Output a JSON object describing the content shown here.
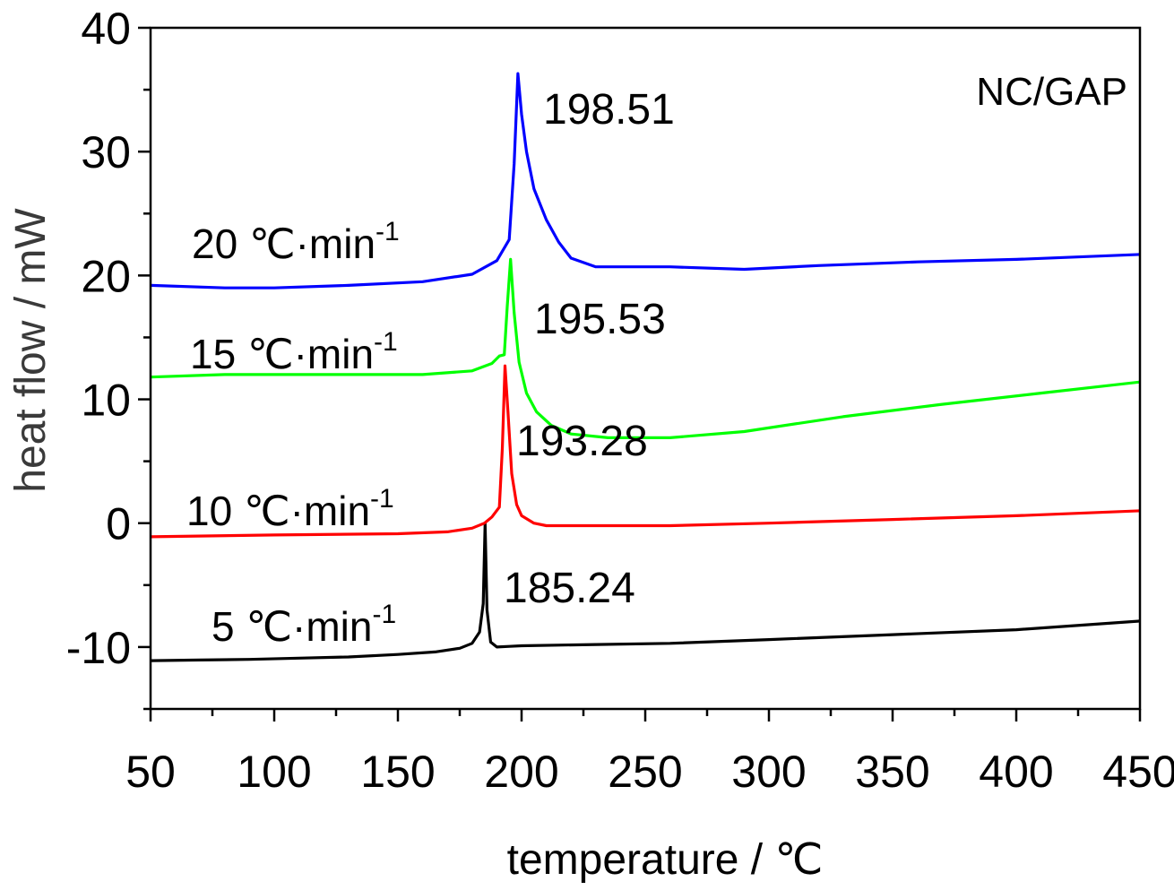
{
  "chart_data": {
    "type": "line",
    "title": "",
    "sample_label": "NC/GAP",
    "xlabel": "temperature / ℃",
    "ylabel": "heat flow / mW",
    "xlim": [
      50,
      450
    ],
    "ylim": [
      -15,
      40
    ],
    "x_ticks": [
      "50",
      "100",
      "150",
      "200",
      "250",
      "300",
      "350",
      "400",
      "450"
    ],
    "y_ticks": [
      "-10",
      "0",
      "10",
      "20",
      "30",
      "40"
    ],
    "grid": false,
    "legend": "none",
    "series": [
      {
        "name": "5 ℃·min",
        "name_sup": "-1",
        "color": "#000000",
        "peak_label": "185.24",
        "x": [
          50,
          70,
          90,
          110,
          130,
          150,
          165,
          175,
          180,
          183,
          184.5,
          185.24,
          186,
          187.5,
          190,
          195,
          200,
          230,
          260,
          300,
          350,
          400,
          450
        ],
        "y": [
          -11.1,
          -11.05,
          -11.0,
          -10.9,
          -10.8,
          -10.6,
          -10.4,
          -10.1,
          -9.7,
          -8.8,
          -6.5,
          0.0,
          -7.0,
          -9.6,
          -10.0,
          -9.95,
          -9.9,
          -9.8,
          -9.7,
          -9.4,
          -9.0,
          -8.6,
          -7.9
        ]
      },
      {
        "name": "10 ℃·min",
        "name_sup": "-1",
        "color": "#ff0000",
        "peak_label": "193.28",
        "x": [
          50,
          100,
          150,
          170,
          180,
          185,
          188,
          191,
          192.2,
          193.28,
          194.5,
          196,
          198,
          200,
          205,
          210,
          230,
          260,
          300,
          350,
          400,
          450
        ],
        "y": [
          -1.1,
          -0.95,
          -0.85,
          -0.7,
          -0.4,
          0.0,
          0.5,
          1.3,
          6.0,
          12.7,
          9.0,
          4.0,
          1.5,
          0.6,
          0.0,
          -0.2,
          -0.2,
          -0.2,
          0.0,
          0.3,
          0.6,
          1.0
        ]
      },
      {
        "name": "15 ℃·min",
        "name_sup": "-1",
        "color": "#00ff00",
        "peak_label": "195.53",
        "x": [
          50,
          80,
          120,
          160,
          180,
          188,
          191,
          193,
          194.2,
          195.53,
          197,
          199,
          202,
          206,
          212,
          220,
          235,
          260,
          290,
          330,
          370,
          410,
          450
        ],
        "y": [
          11.8,
          12.0,
          12.0,
          12.0,
          12.3,
          12.9,
          13.5,
          13.6,
          17.5,
          21.3,
          17.0,
          13.0,
          10.5,
          9.0,
          7.9,
          7.2,
          6.9,
          6.9,
          7.4,
          8.6,
          9.6,
          10.5,
          11.4
        ]
      },
      {
        "name": "20 ℃·min",
        "name_sup": "-1",
        "color": "#0000ff",
        "peak_label": "198.51",
        "x": [
          50,
          80,
          100,
          130,
          160,
          180,
          190,
          195,
          197,
          198.51,
          200,
          202,
          205,
          210,
          215,
          220,
          230,
          260,
          290,
          320,
          360,
          400,
          450
        ],
        "y": [
          19.2,
          19.0,
          19.0,
          19.2,
          19.5,
          20.1,
          21.2,
          22.9,
          29.0,
          36.3,
          33.0,
          30.0,
          27.0,
          24.5,
          22.7,
          21.4,
          20.7,
          20.7,
          20.5,
          20.8,
          21.1,
          21.3,
          21.7
        ]
      }
    ]
  }
}
